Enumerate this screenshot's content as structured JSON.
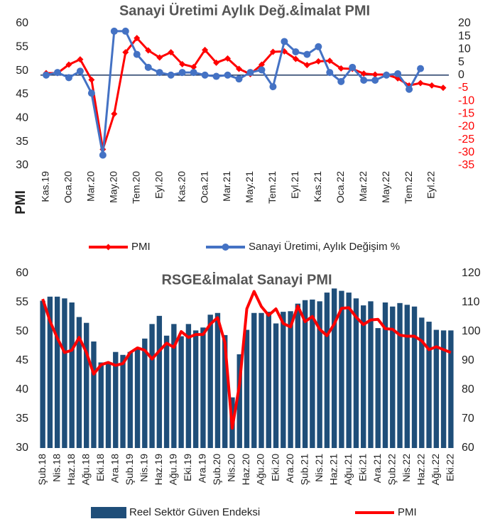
{
  "chart_data": [
    {
      "type": "line",
      "title": "Sanayi Üretimi Aylık Değ.&İmalat PMI",
      "y_label": "PMI",
      "categories": [
        "Kas.19",
        null,
        "Oca.20",
        null,
        "Mar.20",
        null,
        "May.20",
        null,
        "Tem.20",
        null,
        "Eyl.20",
        null,
        "Kas.20",
        null,
        "Oca.21",
        null,
        "Mar.21",
        null,
        "May.21",
        null,
        "Tem.21",
        null,
        "Eyl.21",
        null,
        "Kas.21",
        null,
        "Oca.22",
        null,
        "Mar.22",
        null,
        "May.22",
        null,
        "Tem.22",
        null,
        "Eyl.22",
        null
      ],
      "series": [
        {
          "name": "PMI",
          "color": "#ff0000",
          "marker": "diamond",
          "values": [
            49.5,
            49.5,
            51.3,
            52.4,
            48.1,
            33.4,
            40.9,
            53.9,
            56.9,
            54.3,
            52.8,
            53.9,
            51.4,
            50.8,
            54.4,
            51.7,
            52.6,
            50.4,
            49.3,
            51.3,
            54.0,
            54.1,
            52.5,
            51.2,
            52.0,
            52.1,
            50.5,
            50.4,
            49.4,
            49.2,
            49.2,
            48.4,
            46.9,
            47.4,
            46.9,
            46.4
          ]
        },
        {
          "name": "Sanayi Üretimi, Aylık Değişim %",
          "color": "#4472c4",
          "marker": "circle",
          "axis": "y2",
          "values": [
            0,
            1,
            -1,
            1.5,
            -7,
            -31,
            17,
            17,
            8,
            3,
            1,
            0,
            1,
            1,
            0,
            -0.5,
            0,
            -1.5,
            1,
            2,
            -4.5,
            13,
            9,
            8,
            11,
            1,
            -2.5,
            3,
            -2,
            -2,
            0,
            0.5,
            -5.5,
            2.5,
            null,
            null
          ]
        }
      ],
      "ylim": [
        30,
        60
      ],
      "yticks": [
        30,
        35,
        40,
        45,
        50,
        55,
        60
      ],
      "y2lim": [
        -35,
        20
      ],
      "y2ticks": [
        20,
        15,
        10,
        5,
        0,
        -5,
        -10,
        -15,
        -20,
        -25,
        -30,
        -35
      ],
      "y2tick_negative_color": "#ff0000",
      "grid": false
    },
    {
      "type": "combo",
      "title": "RSGE&İmalat Sanayi PMI",
      "categories": [
        "Şub.18",
        null,
        "Nis.18",
        null,
        "Haz.18",
        null,
        "Ağu.18",
        null,
        "Eki.18",
        null,
        "Ara.18",
        null,
        "Şub.19",
        null,
        "Nis.19",
        null,
        "Haz.19",
        null,
        "Ağu.19",
        null,
        "Eki.19",
        null,
        "Ara.19",
        null,
        "Şub.20",
        null,
        "Nis.20",
        null,
        "Haz.20",
        null,
        "Ağu.20",
        null,
        "Eki.20",
        null,
        "Ara.20",
        null,
        "Şub.21",
        null,
        "Nis.21",
        null,
        "Haz.21",
        null,
        "Ağu.21",
        null,
        "Eki.21",
        null,
        "Ara.21",
        null,
        "Şub.22",
        null,
        "Nis.22",
        null,
        "Haz.22",
        null,
        "Ağu.22",
        null,
        "Eki.22"
      ],
      "series": [
        {
          "name": "Reel Sektör Güven Endeksi",
          "color": "#1f4e79",
          "type": "bar",
          "axis": "y2",
          "values": [
            110.6,
            112,
            112,
            111.4,
            110,
            105,
            103,
            96.6,
            89.4,
            89,
            93,
            92,
            93,
            94,
            97.6,
            102.6,
            105.4,
            98.6,
            102.6,
            98.4,
            102.6,
            100.4,
            101.4,
            105.8,
            106.4,
            98.8,
            77.4,
            92.2,
            100.6,
            106.4,
            106.4,
            106.8,
            102.8,
            106.8,
            107,
            109.6,
            110.8,
            111,
            110.4,
            113.4,
            114.8,
            114,
            113.4,
            111.4,
            109,
            110.4,
            101.2,
            110,
            108.6,
            109.8,
            109.2,
            108.6,
            104.8,
            103.4,
            100.6,
            100.4,
            100.4
          ]
        },
        {
          "name": "PMI",
          "color": "#ff0000",
          "type": "line",
          "values": [
            55.6,
            51.8,
            48.9,
            46.4,
            46.8,
            49.0,
            46.4,
            42.7,
            44.3,
            44.7,
            44.2,
            44.5,
            46.4,
            47.2,
            46.8,
            45.3,
            46.7,
            48.0,
            47.3,
            50.0,
            49.0,
            49.5,
            49.5,
            51.3,
            52.4,
            48.1,
            33.4,
            40.9,
            53.9,
            56.9,
            54.3,
            52.8,
            53.9,
            51.4,
            50.8,
            54.4,
            51.7,
            52.6,
            50.4,
            49.3,
            51.3,
            54.0,
            54.1,
            52.5,
            51.2,
            52.0,
            52.1,
            50.5,
            50.4,
            49.4,
            49.2,
            49.2,
            48.4,
            46.9,
            47.4,
            46.9,
            46.4
          ]
        }
      ],
      "ylim": [
        30,
        60
      ],
      "yticks": [
        30,
        35,
        40,
        45,
        50,
        55,
        60
      ],
      "y2lim": [
        60,
        120
      ],
      "y2ticks": [
        60,
        70,
        80,
        90,
        100,
        110,
        120
      ],
      "grid": false
    }
  ]
}
